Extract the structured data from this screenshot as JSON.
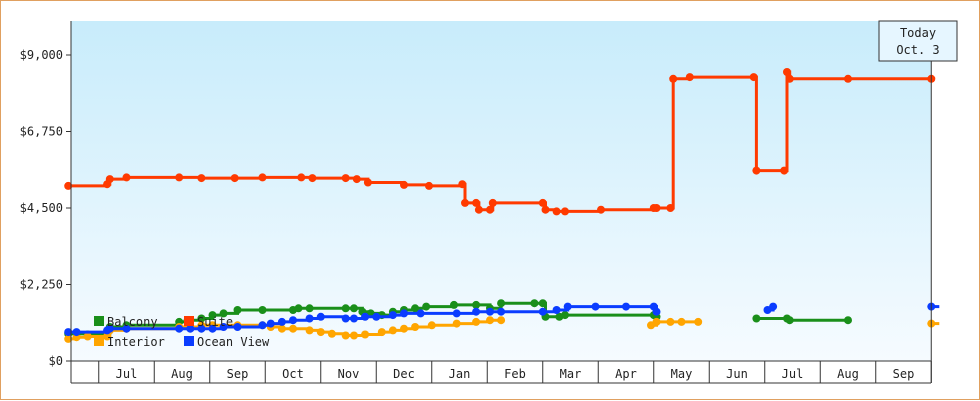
{
  "chart_data": {
    "type": "line",
    "step": true,
    "ylim": [
      0,
      10000
    ],
    "yticks": [
      {
        "value": 0,
        "label": "$0"
      },
      {
        "value": 2250,
        "label": "$2,250"
      },
      {
        "value": 4500,
        "label": "$4,500"
      },
      {
        "value": 6750,
        "label": "$6,750"
      },
      {
        "value": 9000,
        "label": "$9,000"
      }
    ],
    "x_domain": [
      0,
      15.75
    ],
    "months": [
      {
        "label": "Jul",
        "start": 0.5
      },
      {
        "label": "Aug",
        "start": 1.5
      },
      {
        "label": "Sep",
        "start": 2.5
      },
      {
        "label": "Oct",
        "start": 3.5
      },
      {
        "label": "Nov",
        "start": 4.5
      },
      {
        "label": "Dec",
        "start": 5.5
      },
      {
        "label": "Jan",
        "start": 6.5
      },
      {
        "label": "Feb",
        "start": 7.5
      },
      {
        "label": "Mar",
        "start": 8.5
      },
      {
        "label": "Apr",
        "start": 9.5
      },
      {
        "label": "May",
        "start": 10.5
      },
      {
        "label": "Jun",
        "start": 11.5
      },
      {
        "label": "Jul",
        "start": 12.5
      },
      {
        "label": "Aug",
        "start": 13.5
      },
      {
        "label": "Sep",
        "start": 14.5
      }
    ],
    "today": {
      "x": 15.5,
      "line1": "Today",
      "line2": "Oct. 3"
    },
    "series": [
      {
        "name": "Suite",
        "color": "#ff3a00",
        "segments": [
          [
            [
              -0.05,
              5150
            ],
            [
              0.65,
              5200
            ],
            [
              0.7,
              5350
            ],
            [
              1.0,
              5400
            ],
            [
              1.95,
              5400
            ],
            [
              2.35,
              5380
            ],
            [
              2.95,
              5380
            ],
            [
              3.45,
              5400
            ],
            [
              4.15,
              5400
            ],
            [
              4.35,
              5380
            ],
            [
              4.95,
              5380
            ],
            [
              5.15,
              5350
            ],
            [
              5.35,
              5250
            ],
            [
              6.0,
              5180
            ],
            [
              6.45,
              5150
            ],
            [
              7.05,
              5200
            ],
            [
              7.1,
              4650
            ],
            [
              7.3,
              4650
            ],
            [
              7.35,
              4450
            ],
            [
              7.55,
              4450
            ],
            [
              7.6,
              4650
            ],
            [
              8.5,
              4650
            ],
            [
              8.55,
              4450
            ],
            [
              8.75,
              4400
            ],
            [
              8.9,
              4400
            ],
            [
              9.55,
              4450
            ],
            [
              10.5,
              4500
            ],
            [
              10.55,
              4500
            ],
            [
              10.8,
              4500
            ],
            [
              10.85,
              8300
            ],
            [
              11.15,
              8350
            ],
            [
              12.3,
              8350
            ],
            [
              12.35,
              5600
            ],
            [
              12.85,
              5600
            ],
            [
              12.9,
              8500
            ],
            [
              12.95,
              8300
            ],
            [
              14.0,
              8300
            ],
            [
              15.5,
              8300
            ]
          ]
        ]
      },
      {
        "name": "Balcony",
        "color": "#1a8f1a",
        "segments": [
          [
            [
              -0.05,
              800
            ],
            [
              0.1,
              800
            ],
            [
              0.3,
              780
            ],
            [
              0.65,
              800
            ],
            [
              0.7,
              1000
            ],
            [
              1.0,
              1050
            ],
            [
              1.95,
              1150
            ],
            [
              2.1,
              1200
            ],
            [
              2.35,
              1250
            ],
            [
              2.55,
              1350
            ],
            [
              2.75,
              1400
            ],
            [
              3.0,
              1500
            ],
            [
              3.45,
              1500
            ],
            [
              4.0,
              1500
            ],
            [
              4.1,
              1550
            ],
            [
              4.3,
              1550
            ],
            [
              4.95,
              1550
            ],
            [
              5.1,
              1550
            ],
            [
              5.25,
              1450
            ],
            [
              5.4,
              1400
            ],
            [
              5.6,
              1350
            ],
            [
              5.8,
              1450
            ],
            [
              6.0,
              1500
            ],
            [
              6.2,
              1550
            ],
            [
              6.4,
              1600
            ],
            [
              6.9,
              1650
            ],
            [
              7.3,
              1650
            ],
            [
              7.55,
              1550
            ],
            [
              7.75,
              1700
            ],
            [
              8.35,
              1700
            ],
            [
              8.5,
              1700
            ],
            [
              8.55,
              1300
            ],
            [
              8.8,
              1300
            ],
            [
              8.9,
              1350
            ],
            [
              10.5,
              1350
            ],
            [
              10.55,
              1300
            ]
          ],
          [
            [
              12.35,
              1250
            ],
            [
              12.9,
              1250
            ],
            [
              12.95,
              1200
            ],
            [
              14.0,
              1200
            ]
          ]
        ]
      },
      {
        "name": "Interior",
        "color": "#ffa500",
        "segments": [
          [
            [
              -0.05,
              650
            ],
            [
              0.1,
              700
            ],
            [
              0.3,
              720
            ],
            [
              0.65,
              720
            ],
            [
              0.7,
              900
            ],
            [
              1.0,
              950
            ],
            [
              1.95,
              1000
            ],
            [
              2.35,
              1050
            ],
            [
              2.55,
              1050
            ],
            [
              3.0,
              1050
            ],
            [
              3.45,
              1050
            ],
            [
              3.6,
              1000
            ],
            [
              3.8,
              950
            ],
            [
              4.0,
              950
            ],
            [
              4.3,
              900
            ],
            [
              4.5,
              850
            ],
            [
              4.7,
              800
            ],
            [
              4.95,
              750
            ],
            [
              5.1,
              750
            ],
            [
              5.3,
              780
            ],
            [
              5.6,
              850
            ],
            [
              5.8,
              900
            ],
            [
              6.0,
              950
            ],
            [
              6.2,
              1000
            ],
            [
              6.5,
              1050
            ],
            [
              6.95,
              1100
            ],
            [
              7.3,
              1150
            ],
            [
              7.55,
              1200
            ],
            [
              7.75,
              1200
            ]
          ],
          [
            [
              10.45,
              1050
            ],
            [
              10.55,
              1150
            ],
            [
              10.8,
              1150
            ],
            [
              11.0,
              1150
            ],
            [
              11.3,
              1150
            ]
          ],
          [
            [
              15.5,
              1100
            ],
            [
              15.75,
              1100
            ]
          ]
        ]
      },
      {
        "name": "Ocean View",
        "color": "#0a3cff",
        "segments": [
          [
            [
              -0.05,
              850
            ],
            [
              0.1,
              850
            ],
            [
              0.65,
              900
            ],
            [
              0.7,
              950
            ],
            [
              1.0,
              950
            ],
            [
              1.95,
              950
            ],
            [
              2.15,
              950
            ],
            [
              2.35,
              950
            ],
            [
              2.55,
              950
            ],
            [
              2.75,
              1000
            ],
            [
              3.0,
              1000
            ],
            [
              3.45,
              1050
            ],
            [
              3.6,
              1100
            ],
            [
              3.8,
              1150
            ],
            [
              4.0,
              1200
            ],
            [
              4.3,
              1250
            ],
            [
              4.5,
              1300
            ],
            [
              4.95,
              1250
            ],
            [
              5.1,
              1250
            ],
            [
              5.3,
              1300
            ],
            [
              5.5,
              1300
            ],
            [
              5.8,
              1350
            ],
            [
              6.0,
              1400
            ],
            [
              6.3,
              1400
            ],
            [
              6.95,
              1400
            ],
            [
              7.3,
              1450
            ],
            [
              7.55,
              1450
            ],
            [
              7.75,
              1450
            ],
            [
              8.5,
              1450
            ],
            [
              8.75,
              1500
            ],
            [
              8.95,
              1600
            ],
            [
              9.45,
              1600
            ],
            [
              10.0,
              1600
            ],
            [
              10.5,
              1600
            ],
            [
              10.55,
              1450
            ]
          ],
          [
            [
              12.55,
              1500
            ],
            [
              12.65,
              1600
            ]
          ],
          [
            [
              15.5,
              1600
            ],
            [
              15.75,
              1600
            ]
          ]
        ]
      }
    ],
    "legend": {
      "items": [
        "Balcony",
        "Suite",
        "Interior",
        "Ocean View"
      ],
      "colors": [
        "#1a8f1a",
        "#ff3a00",
        "#ffa500",
        "#0a3cff"
      ]
    }
  }
}
